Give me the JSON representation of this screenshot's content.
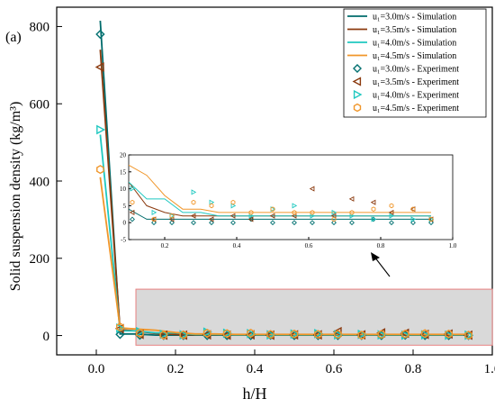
{
  "chart_data": [
    {
      "id": "main",
      "type": "line",
      "panel_label": "(a)",
      "xlabel": "h/H",
      "ylabel": "Solid suspension density (kg/m³)",
      "xlim": [
        -0.1,
        1.0
      ],
      "ylim": [
        -50,
        850
      ],
      "x_ticks": [
        0.0,
        0.2,
        0.4,
        0.6,
        0.8,
        1.0
      ],
      "x_tick_labels": [
        "0.0",
        "0.2",
        "0.4",
        "0.6",
        "0.8",
        "1.0"
      ],
      "y_ticks": [
        0,
        200,
        400,
        600,
        800
      ],
      "y_tick_labels": [
        "0",
        "200",
        "400",
        "600",
        "800"
      ],
      "grid": false,
      "legend_position": "top-right",
      "highlight_region": {
        "x": [
          0.1,
          1.0
        ],
        "y": [
          -25,
          120
        ],
        "fill": "#d9d9d9",
        "stroke": "#e88080"
      },
      "series": [
        {
          "name": "u₁=3.0m/s - Simulation",
          "kind": "line",
          "color": "#006b6b",
          "x": [
            0.01,
            0.06,
            0.1,
            0.15,
            0.2,
            0.25,
            0.3,
            0.35,
            0.4,
            0.45,
            0.5,
            0.55,
            0.6,
            0.65,
            0.7,
            0.75,
            0.8,
            0.85,
            0.9,
            0.94
          ],
          "y": [
            815,
            4,
            4,
            1,
            1,
            1,
            1,
            1,
            1,
            1,
            1,
            1,
            1,
            1,
            1,
            1,
            1,
            1,
            1,
            1
          ]
        },
        {
          "name": "u₁=3.5m/s - Simulation",
          "kind": "line",
          "color": "#8b3a0e",
          "x": [
            0.01,
            0.06,
            0.1,
            0.15,
            0.2,
            0.25,
            0.3,
            0.35,
            0.4,
            0.45,
            0.5,
            0.55,
            0.6,
            0.65,
            0.7,
            0.75,
            0.8,
            0.85,
            0.9,
            0.94
          ],
          "y": [
            740,
            15,
            12,
            5,
            3,
            2,
            2,
            2,
            2,
            2,
            2,
            2,
            2,
            2,
            2,
            2,
            2,
            2,
            2,
            2
          ]
        },
        {
          "name": "u₁=4.0m/s - Simulation",
          "kind": "line",
          "color": "#1fc8c0",
          "x": [
            0.01,
            0.06,
            0.1,
            0.15,
            0.2,
            0.25,
            0.3,
            0.35,
            0.4,
            0.45,
            0.5,
            0.55,
            0.6,
            0.65,
            0.7,
            0.75,
            0.8,
            0.85,
            0.9,
            0.94
          ],
          "y": [
            520,
            12,
            12,
            7,
            7,
            3,
            3,
            2,
            2,
            2,
            2,
            2,
            2,
            2,
            2,
            2,
            2,
            2,
            2,
            2
          ]
        },
        {
          "name": "u₁=4.5m/s - Simulation",
          "kind": "line",
          "color": "#f0962a",
          "x": [
            0.01,
            0.06,
            0.1,
            0.15,
            0.2,
            0.25,
            0.3,
            0.35,
            0.4,
            0.45,
            0.5,
            0.55,
            0.6,
            0.65,
            0.7,
            0.75,
            0.8,
            0.85,
            0.9,
            0.94
          ],
          "y": [
            410,
            20,
            17,
            14,
            8,
            4,
            4,
            3,
            3,
            3,
            3,
            3,
            3,
            3,
            3,
            3,
            3,
            3,
            3,
            3
          ]
        },
        {
          "name": "u₁=3.0m/s - Experiment",
          "kind": "marker",
          "marker": "diamond",
          "color": "#007070",
          "x": [
            0.01,
            0.06,
            0.11,
            0.17,
            0.22,
            0.28,
            0.33,
            0.39,
            0.44,
            0.5,
            0.56,
            0.61,
            0.67,
            0.72,
            0.78,
            0.83,
            0.89,
            0.94
          ],
          "y": [
            780,
            3,
            1,
            0,
            0,
            0,
            0,
            0,
            1,
            0,
            0,
            0,
            0,
            0,
            1,
            0,
            0,
            0
          ]
        },
        {
          "name": "u₁=3.5m/s - Experiment",
          "kind": "marker",
          "marker": "triangle-left",
          "color": "#8b3a0e",
          "x": [
            0.01,
            0.06,
            0.11,
            0.17,
            0.22,
            0.28,
            0.33,
            0.39,
            0.44,
            0.5,
            0.56,
            0.61,
            0.67,
            0.72,
            0.78,
            0.83,
            0.89,
            0.94
          ],
          "y": [
            695,
            18,
            3,
            1,
            1,
            2,
            1,
            2,
            1,
            2,
            2,
            10,
            2,
            7,
            6,
            3,
            4,
            1
          ]
        },
        {
          "name": "u₁=4.0m/s - Experiment",
          "kind": "marker",
          "marker": "triangle-right",
          "color": "#1fc8c0",
          "x": [
            0.01,
            0.06,
            0.11,
            0.17,
            0.22,
            0.28,
            0.33,
            0.39,
            0.44,
            0.5,
            0.56,
            0.61,
            0.67,
            0.72,
            0.78,
            0.83,
            0.89,
            0.94
          ],
          "y": [
            533,
            19,
            10,
            3,
            2,
            9,
            6,
            5,
            2,
            4,
            5,
            2,
            3,
            2,
            1,
            2,
            1,
            1
          ]
        },
        {
          "name": "u₁=4.5m/s - Experiment",
          "kind": "marker",
          "marker": "hexagon",
          "color": "#f0962a",
          "x": [
            0.01,
            0.06,
            0.11,
            0.17,
            0.22,
            0.28,
            0.33,
            0.39,
            0.44,
            0.5,
            0.56,
            0.61,
            0.67,
            0.72,
            0.78,
            0.83,
            0.89,
            0.94
          ],
          "y": [
            430,
            22,
            6,
            1,
            2,
            6,
            5,
            6,
            3,
            4,
            3,
            3,
            1,
            3,
            4,
            5,
            4,
            1
          ]
        }
      ]
    },
    {
      "id": "inset",
      "type": "line",
      "xlim": [
        0.1,
        1.0
      ],
      "ylim": [
        -5,
        20
      ],
      "x_ticks": [
        0.2,
        0.4,
        0.6,
        0.8,
        1.0
      ],
      "x_tick_labels": [
        "0.2",
        "0.4",
        "0.6",
        "0.8",
        "1.0"
      ],
      "y_ticks": [
        -5,
        0,
        5,
        10,
        15,
        20
      ],
      "y_tick_labels": [
        "-5",
        "0",
        "5",
        "10",
        "15",
        "20"
      ],
      "grid": false,
      "note": "magnified view of the shaded region of the main plot, same series"
    }
  ]
}
